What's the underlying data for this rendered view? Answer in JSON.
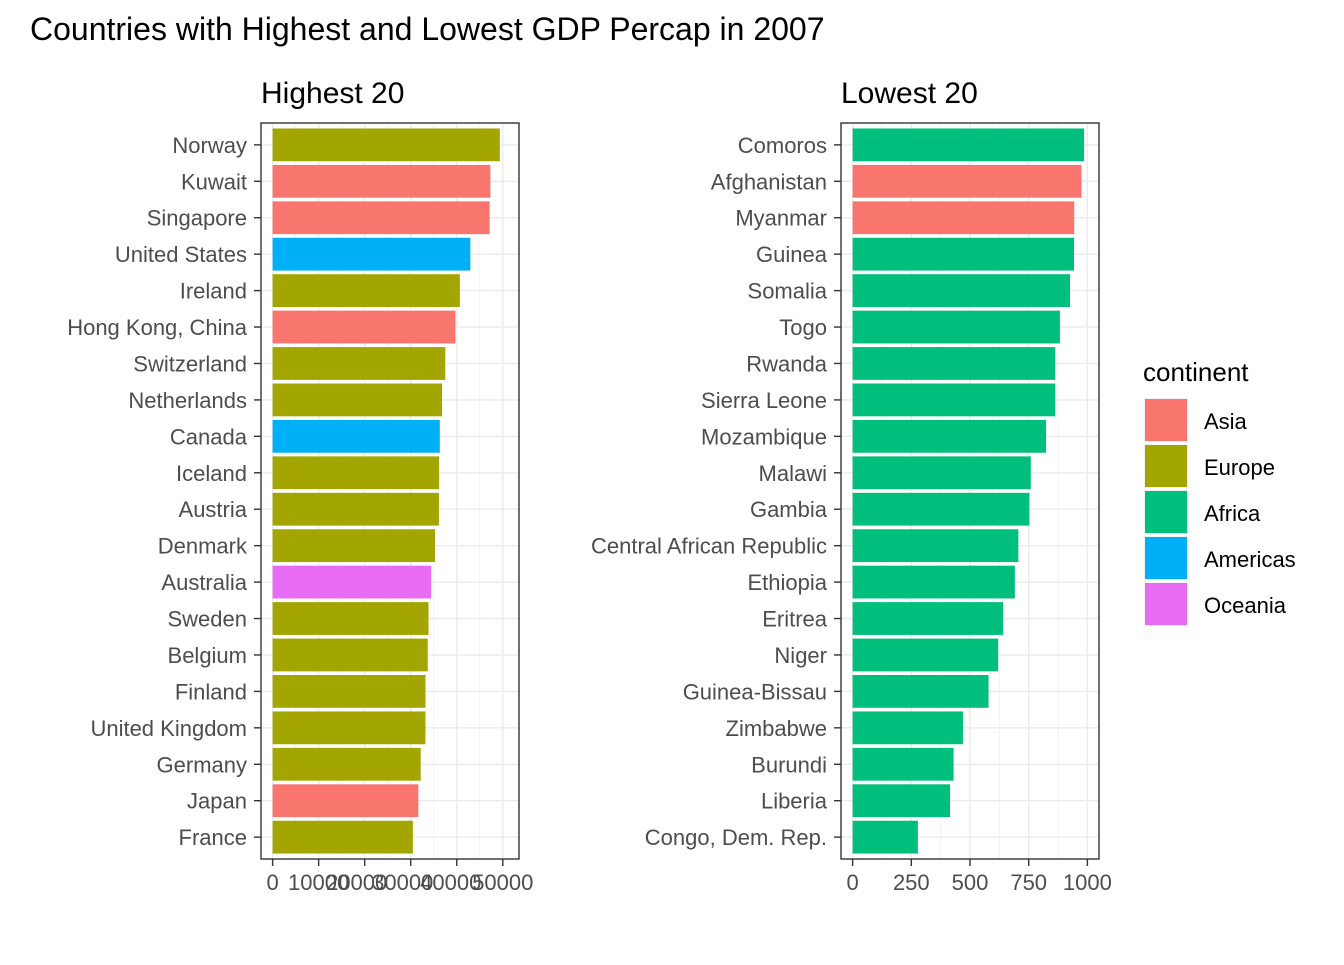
{
  "title": "Countries with Highest and Lowest GDP Percap in 2007",
  "legend": {
    "title": "continent",
    "placement": "right",
    "items": [
      {
        "label": "Asia",
        "color": "#F8766D"
      },
      {
        "label": "Europe",
        "color": "#A3A500"
      },
      {
        "label": "Africa",
        "color": "#00BF7D"
      },
      {
        "label": "Americas",
        "color": "#00B0F6"
      },
      {
        "label": "Oceania",
        "color": "#E76BF3"
      }
    ]
  },
  "chart_data": [
    {
      "type": "bar",
      "orientation": "horizontal",
      "title": "Highest 20",
      "xlim": [
        0,
        51000
      ],
      "x_ticks": [
        "0",
        "10000",
        "20000",
        "30000",
        "40000",
        "50000"
      ],
      "x_tick_values": [
        0,
        10000,
        20000,
        30000,
        40000,
        50000
      ],
      "grid": true,
      "categories": [
        "Norway",
        "Kuwait",
        "Singapore",
        "United States",
        "Ireland",
        "Hong Kong, China",
        "Switzerland",
        "Netherlands",
        "Canada",
        "Iceland",
        "Austria",
        "Denmark",
        "Australia",
        "Sweden",
        "Belgium",
        "Finland",
        "United Kingdom",
        "Germany",
        "Japan",
        "France"
      ],
      "values": [
        49357,
        47307,
        47143,
        42952,
        40676,
        39725,
        37506,
        36798,
        36319,
        36181,
        36126,
        35278,
        34435,
        33860,
        33693,
        33207,
        33203,
        32170,
        31656,
        30470
      ],
      "continents": [
        "Europe",
        "Asia",
        "Asia",
        "Americas",
        "Europe",
        "Asia",
        "Europe",
        "Europe",
        "Americas",
        "Europe",
        "Europe",
        "Europe",
        "Oceania",
        "Europe",
        "Europe",
        "Europe",
        "Europe",
        "Europe",
        "Asia",
        "Europe"
      ]
    },
    {
      "type": "bar",
      "orientation": "horizontal",
      "title": "Lowest 20",
      "xlim": [
        0,
        1000
      ],
      "x_ticks": [
        "0",
        "250",
        "500",
        "750",
        "1000"
      ],
      "x_tick_values": [
        0,
        250,
        500,
        750,
        1000
      ],
      "grid": true,
      "categories": [
        "Comoros",
        "Afghanistan",
        "Myanmar",
        "Guinea",
        "Somalia",
        "Togo",
        "Rwanda",
        "Sierra Leone",
        "Mozambique",
        "Malawi",
        "Gambia",
        "Central African Republic",
        "Ethiopia",
        "Eritrea",
        "Niger",
        "Guinea-Bissau",
        "Zimbabwe",
        "Burundi",
        "Liberia",
        "Congo, Dem. Rep."
      ],
      "values": [
        986,
        975,
        944,
        943,
        926,
        883,
        863,
        863,
        824,
        759,
        753,
        706,
        691,
        641,
        620,
        579,
        470,
        430,
        415,
        278
      ],
      "continents": [
        "Africa",
        "Asia",
        "Asia",
        "Africa",
        "Africa",
        "Africa",
        "Africa",
        "Africa",
        "Africa",
        "Africa",
        "Africa",
        "Africa",
        "Africa",
        "Africa",
        "Africa",
        "Africa",
        "Africa",
        "Africa",
        "Africa",
        "Africa"
      ]
    }
  ]
}
